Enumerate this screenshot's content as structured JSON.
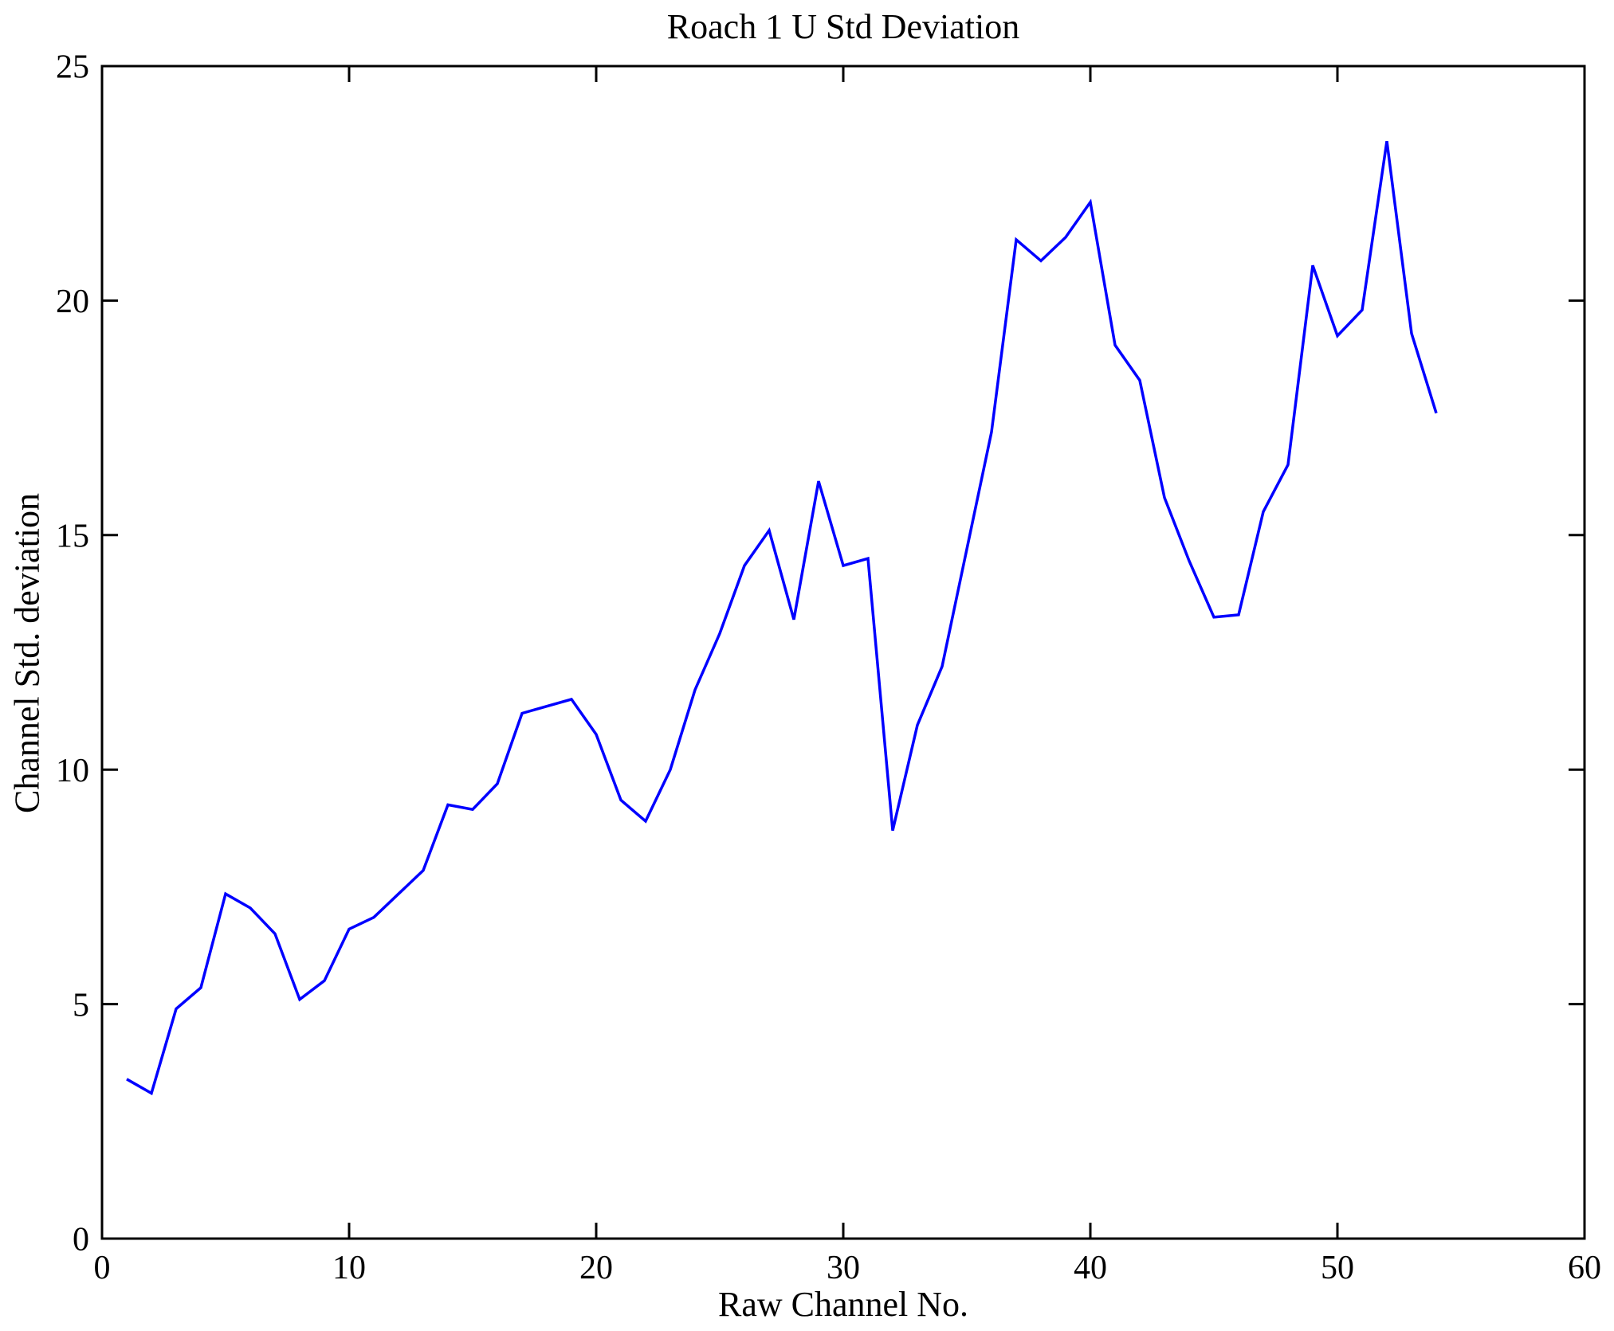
{
  "figure": {
    "background": "#ffffff"
  },
  "chart_data": {
    "type": "line",
    "title": "Roach 1 U Std Deviation",
    "xlabel": "Raw Channel No.",
    "ylabel": "Channel Std. deviation",
    "xlim": [
      0,
      60
    ],
    "ylim": [
      0,
      25
    ],
    "xticks": [
      0,
      10,
      20,
      30,
      40,
      50,
      60
    ],
    "yticks": [
      0,
      5,
      10,
      15,
      20,
      25
    ],
    "grid": false,
    "legend_position": "none",
    "axis_color": "#000000",
    "line_color": "#0000ff",
    "series": [
      {
        "name": "Channel Std. deviation",
        "x": [
          1,
          2,
          3,
          4,
          5,
          6,
          7,
          8,
          9,
          10,
          11,
          12,
          13,
          14,
          15,
          16,
          17,
          18,
          19,
          20,
          21,
          22,
          23,
          24,
          25,
          26,
          27,
          28,
          29,
          30,
          31,
          32,
          33,
          34,
          35,
          36,
          37,
          38,
          39,
          40,
          41,
          42,
          43,
          44,
          45,
          46,
          47,
          48,
          49,
          50,
          51,
          52,
          53,
          54
        ],
        "y": [
          3.4,
          3.1,
          4.9,
          5.35,
          7.35,
          7.05,
          6.5,
          5.1,
          5.5,
          6.6,
          6.85,
          7.35,
          7.85,
          9.25,
          9.15,
          9.7,
          11.2,
          11.35,
          11.5,
          10.75,
          9.35,
          8.9,
          10.0,
          11.7,
          12.9,
          14.35,
          15.1,
          13.2,
          16.15,
          14.35,
          14.5,
          8.7,
          10.95,
          12.2,
          14.7,
          17.2,
          21.3,
          20.85,
          21.35,
          22.1,
          19.05,
          18.3,
          15.8,
          14.45,
          13.25,
          13.3,
          15.5,
          16.5,
          20.75,
          19.25,
          19.8,
          23.4,
          19.3,
          17.6
        ]
      }
    ]
  }
}
